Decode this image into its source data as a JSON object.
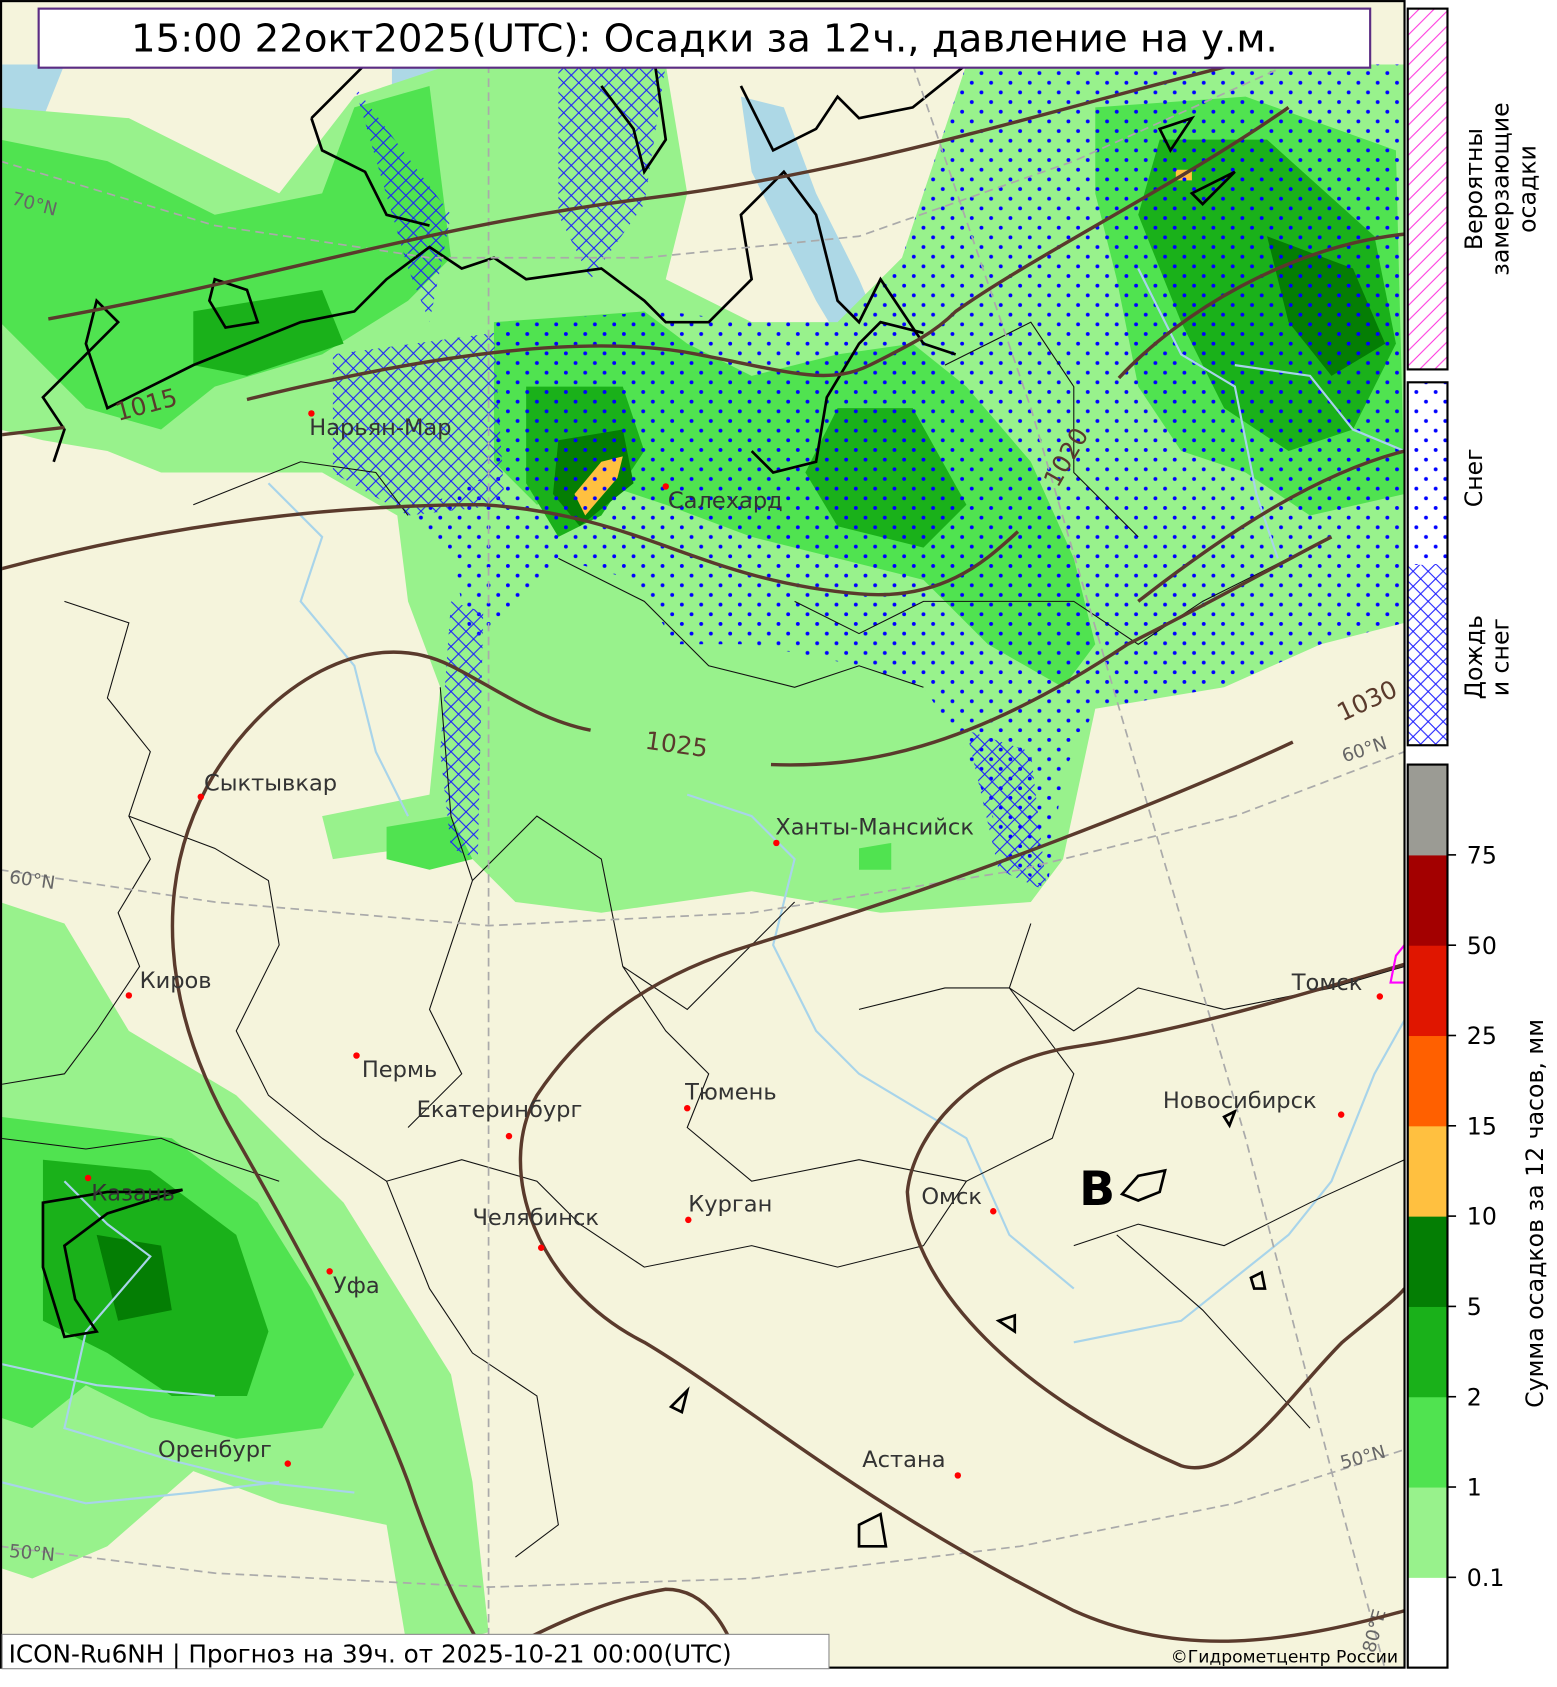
{
  "title": "15:00 22окт2025(UTC): Осадки за 12ч., давление на у.м.",
  "footer": {
    "model_info": "ICON-Ru6NH | Прогноз на  39ч. от 2025-10-21 00:00(UTC)",
    "copyright": "©Гидрометцентр России"
  },
  "legend": {
    "freezing": [
      "Вероятны",
      "замерзающие",
      "осадки"
    ],
    "snow": "Снег",
    "rain_snow": [
      "Дождь",
      "и снег"
    ]
  },
  "colorbar": {
    "label": "Сумма осадков за 12 часов, мм",
    "ticks": [
      "0.1",
      "1",
      "2",
      "5",
      "10",
      "15",
      "25",
      "50",
      "75"
    ],
    "colors": [
      "#ffffff",
      "#98f28c",
      "#50e350",
      "#1ab11a",
      "#047e04",
      "#ffc040",
      "#ff6000",
      "#e01600",
      "#a30000",
      "#9b9b94"
    ]
  },
  "map_colors": {
    "land": "#f5f4dc",
    "water": "#add8e6",
    "isobar": "#5a3a2c",
    "city_marker": "#ff0000",
    "snow_dots": "#0000ff"
  },
  "cities": [
    "Нарьян-Мар",
    "Салехард",
    "Сыктывкар",
    "Ханты-Мансийск",
    "Киров",
    "Пермь",
    "Екатеринбург",
    "Тюмень",
    "Томск",
    "Новосибирск",
    "Казань",
    "Курган",
    "Омск",
    "Челябинск",
    "Уфа",
    "Оренбург",
    "Астана"
  ],
  "isobar_labels": [
    "1015",
    "1020",
    "1025",
    "1030"
  ],
  "pressure_center": "В",
  "graticule_labels": [
    "70°N",
    "60°N",
    "60°N",
    "50°N",
    "50°N",
    "80°E"
  ]
}
